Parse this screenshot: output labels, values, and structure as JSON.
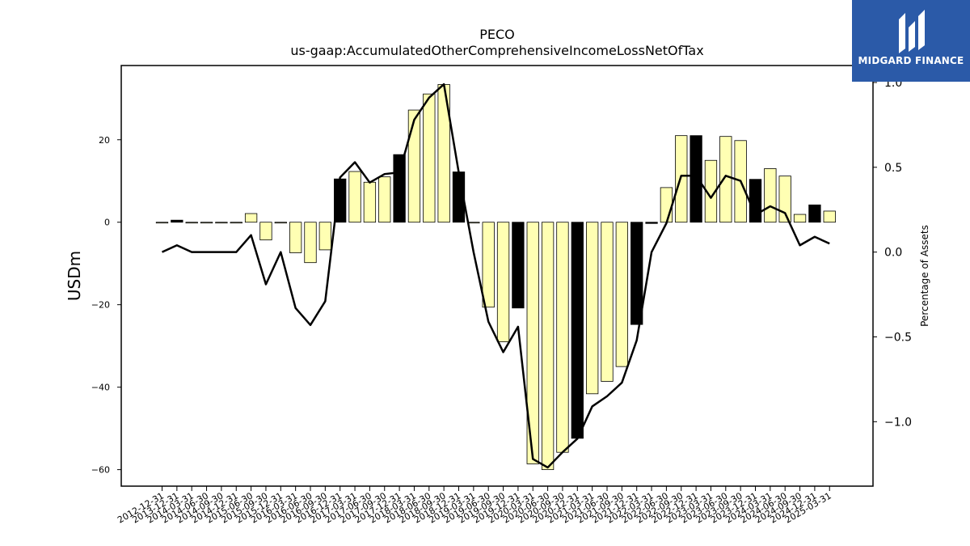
{
  "brand": {
    "name": "MIDGARD FINANCE",
    "color": "#2b5aa8"
  },
  "chart_data": {
    "type": "bar",
    "title": "PECO",
    "subtitle": "us-gaap:AccumulatedOtherComprehensiveIncomeLossNetOfTax",
    "ylabel": "USDm",
    "y2label": "Percentage of Assets",
    "ylim": [
      -64,
      38
    ],
    "y2lim": [
      -1.38,
      1.1
    ],
    "yticks": [
      -60,
      -40,
      -20,
      0,
      20
    ],
    "y2ticks": [
      -1.0,
      -0.5,
      0.0,
      0.5,
      1.0
    ],
    "colors": {
      "bar_default": "#ffffb3",
      "bar_highlight": "#000000",
      "line": "#000000"
    },
    "categories": [
      "2012-12-31",
      "2013-12-31",
      "2014-03-31",
      "2014-06-30",
      "2014-09-30",
      "2014-12-31",
      "2015-06-30",
      "2015-09-30",
      "2015-12-31",
      "2016-03-31",
      "2016-06-30",
      "2016-09-30",
      "2016-12-31",
      "2017-03-31",
      "2017-06-30",
      "2017-09-30",
      "2017-12-31",
      "2018-03-31",
      "2018-06-30",
      "2018-09-30",
      "2018-12-31",
      "2019-03-31",
      "2019-06-30",
      "2019-09-30",
      "2019-12-31",
      "2020-03-31",
      "2020-06-30",
      "2020-09-30",
      "2020-12-31",
      "2021-03-31",
      "2021-06-30",
      "2021-09-30",
      "2021-12-31",
      "2022-03-31",
      "2022-06-30",
      "2022-09-30",
      "2022-12-31",
      "2023-03-31",
      "2023-06-30",
      "2023-09-30",
      "2023-12-31",
      "2024-03-31",
      "2024-06-30",
      "2024-09-30",
      "2024-12-31",
      "2025-03-31"
    ],
    "series": [
      {
        "type": "bar",
        "values": [
          0,
          0.5,
          0,
          0,
          0,
          0,
          2.1,
          -4.3,
          0,
          -7.4,
          -9.8,
          -6.7,
          10.5,
          12.3,
          9.7,
          11.0,
          16.4,
          27.2,
          31.1,
          33.4,
          12.2,
          0,
          -20.6,
          -29.0,
          -20.8,
          -58.6,
          -60.0,
          -55.8,
          -52.4,
          -41.6,
          -38.6,
          -35.0,
          -24.8,
          -0.3,
          8.4,
          21.0,
          21.0,
          15.0,
          20.8,
          19.8,
          10.4,
          13.0,
          11.2,
          1.9,
          4.2,
          2.7
        ],
        "highlight": [
          false,
          true,
          false,
          false,
          false,
          false,
          false,
          false,
          false,
          false,
          false,
          false,
          true,
          false,
          false,
          false,
          true,
          false,
          false,
          false,
          true,
          false,
          false,
          false,
          true,
          false,
          false,
          false,
          true,
          false,
          false,
          false,
          true,
          true,
          false,
          false,
          true,
          false,
          false,
          false,
          true,
          false,
          false,
          false,
          true,
          false
        ]
      },
      {
        "name": "Percentage of Assets",
        "type": "line",
        "axis": "right",
        "values": [
          0.0,
          0.04,
          0.0,
          0.0,
          0.0,
          0.0,
          0.1,
          -0.19,
          0.0,
          -0.33,
          -0.43,
          -0.29,
          0.44,
          0.53,
          0.41,
          0.46,
          0.47,
          0.78,
          0.91,
          0.99,
          0.47,
          0.0,
          -0.41,
          -0.59,
          -0.44,
          -1.22,
          -1.27,
          -1.18,
          -1.1,
          -0.91,
          -0.85,
          -0.77,
          -0.52,
          0.0,
          0.17,
          0.45,
          0.45,
          0.32,
          0.45,
          0.42,
          0.22,
          0.27,
          0.23,
          0.04,
          0.09,
          0.05
        ]
      }
    ]
  }
}
